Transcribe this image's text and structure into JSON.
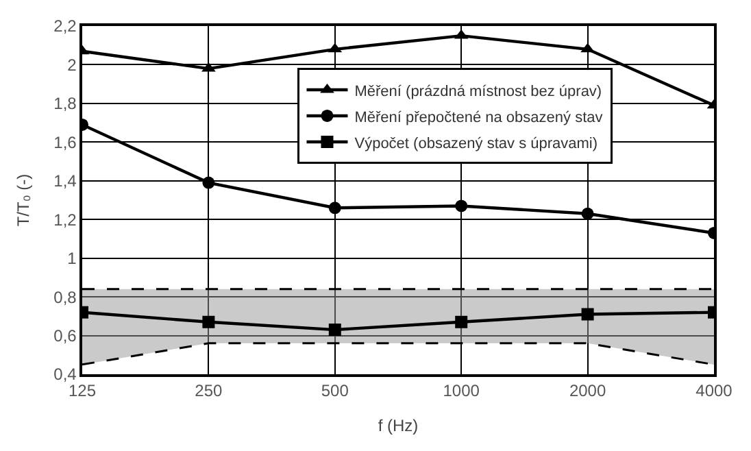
{
  "chart_data": {
    "type": "line",
    "xlabel": "f (Hz)",
    "ylabel": "T/T₀ (-)",
    "categories": [
      "125",
      "250",
      "500",
      "1000",
      "2000",
      "4000"
    ],
    "ylim": [
      0.4,
      2.2
    ],
    "yticks": [
      {
        "value": 0.4,
        "label": "0,4"
      },
      {
        "value": 0.6,
        "label": "0,6"
      },
      {
        "value": 0.8,
        "label": "0,8"
      },
      {
        "value": 1,
        "label": "1"
      },
      {
        "value": 1.2,
        "label": "1,2"
      },
      {
        "value": 1.4,
        "label": "1,4"
      },
      {
        "value": 1.6,
        "label": "1,6"
      },
      {
        "value": 1.8,
        "label": "1,8"
      },
      {
        "value": 2,
        "label": "2"
      },
      {
        "value": 2.2,
        "label": "2,2"
      }
    ],
    "grid": true,
    "legend": "top right",
    "line_style": "solid",
    "series": [
      {
        "name": "Měření (prázdná místnost bez úprav)",
        "color": "#000000",
        "marker": "triangle",
        "values": [
          2.07,
          1.98,
          2.08,
          2.15,
          2.08,
          1.79
        ]
      },
      {
        "name": "Měření přepočtené na obsazený stav",
        "color": "#000000",
        "marker": "circle",
        "values": [
          1.69,
          1.39,
          1.26,
          1.27,
          1.23,
          1.13
        ]
      },
      {
        "name": "Výpočet (obsazený stav s úpravami)",
        "color": "#000000",
        "marker": "square",
        "values": [
          0.72,
          0.67,
          0.63,
          0.67,
          0.71,
          0.72
        ],
        "lower": [
          0.45,
          0.56,
          0.56,
          0.56,
          0.56,
          0.45
        ],
        "upper": [
          0.84,
          0.84,
          0.84,
          0.84,
          0.84,
          0.84
        ]
      },
      {
        "color": "#000000",
        "line_style": "dashed",
        "marker": "none",
        "values": [
          0.84,
          0.84,
          0.84,
          0.84,
          0.84,
          0.84
        ]
      },
      {
        "color": "#000000",
        "line_style": "dashed",
        "marker": "none",
        "values": [
          0.45,
          0.56,
          0.56,
          0.56,
          0.56,
          0.45
        ]
      }
    ]
  }
}
